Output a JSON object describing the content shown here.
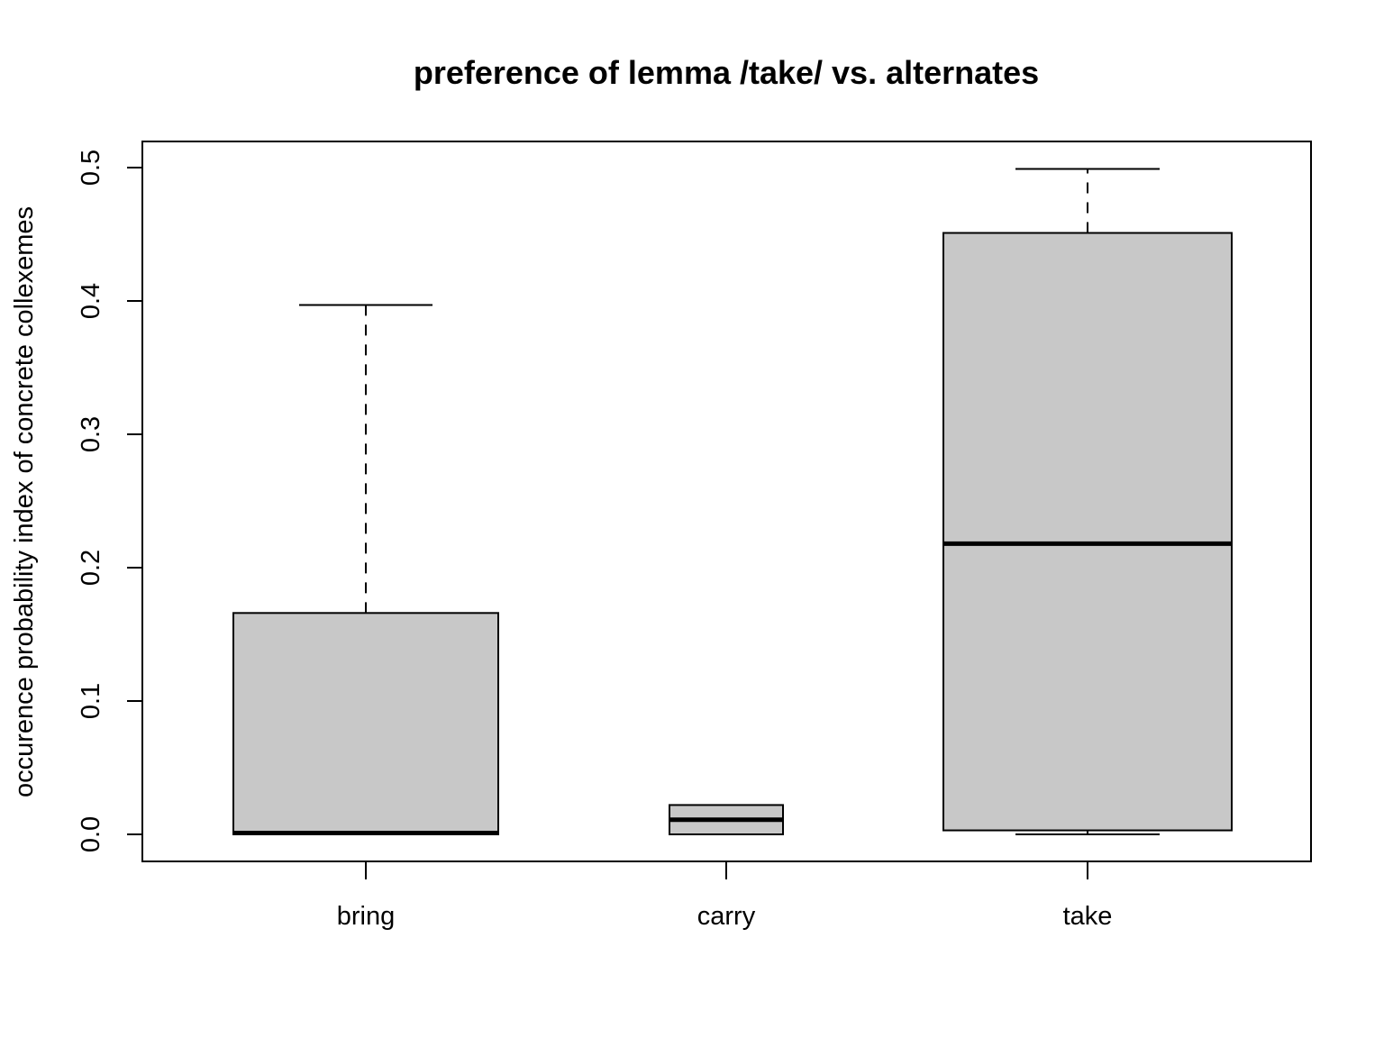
{
  "chart_data": {
    "type": "boxplot",
    "title": "preference of lemma /take/ vs. alternates",
    "xlabel": "",
    "ylabel": "occurence probability index of concrete collexemes",
    "ylim": [
      0.0,
      0.5
    ],
    "yticks": [
      "0.0",
      "0.1",
      "0.2",
      "0.3",
      "0.4",
      "0.5"
    ],
    "grid": false,
    "legend": null,
    "categories": [
      "bring",
      "carry",
      "take"
    ],
    "boxes": [
      {
        "name": "bring",
        "whisker_low": 0.0,
        "q1": 0.0,
        "median": 0.001,
        "q3": 0.166,
        "whisker_high": 0.397
      },
      {
        "name": "carry",
        "whisker_low": 0.0,
        "q1": 0.0,
        "median": 0.011,
        "q3": 0.022,
        "whisker_high": 0.022
      },
      {
        "name": "take",
        "whisker_low": 0.0,
        "q1": 0.003,
        "median": 0.218,
        "q3": 0.451,
        "whisker_high": 0.499
      }
    ],
    "colors": {
      "box_fill": "#c8c8c8",
      "stroke": "#000000",
      "background": "#ffffff"
    }
  }
}
